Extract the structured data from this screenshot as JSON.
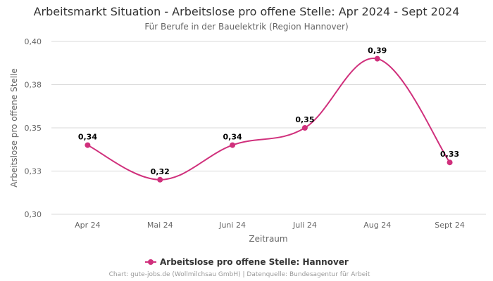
{
  "chart_data": {
    "type": "line",
    "title": "Arbeitsmarkt Situation - Arbeitslose pro offene Stelle: Apr 2024 - Sept 2024",
    "subtitle": "Für Berufe in der Bauelektrik (Region Hannover)",
    "xlabel": "Zeitraum",
    "ylabel": "Arbeitslose pro offene Stelle",
    "categories": [
      "Apr 24",
      "Mai 24",
      "Juni 24",
      "Juli 24",
      "Aug 24",
      "Sept 24"
    ],
    "series": [
      {
        "name": "Arbeitslose pro offene Stelle: Hannover",
        "values": [
          0.34,
          0.32,
          0.34,
          0.35,
          0.39,
          0.33
        ],
        "labels": [
          "0,34",
          "0,32",
          "0,34",
          "0,35",
          "0,39",
          "0,33"
        ],
        "color": "#d0307c"
      }
    ],
    "ylim": [
      0.3,
      0.4
    ],
    "yticks": [
      {
        "value": 0.3,
        "label": "0,30"
      },
      {
        "value": 0.325,
        "label": "0,33"
      },
      {
        "value": 0.35,
        "label": "0,35"
      },
      {
        "value": 0.375,
        "label": "0,38"
      },
      {
        "value": 0.4,
        "label": "0,40"
      }
    ],
    "grid": true,
    "legend_position": "bottom-center",
    "credit": "Chart: gute-jobs.de (Wollmilchsau GmbH) | Datenquelle: Bundesagentur für Arbeit"
  }
}
